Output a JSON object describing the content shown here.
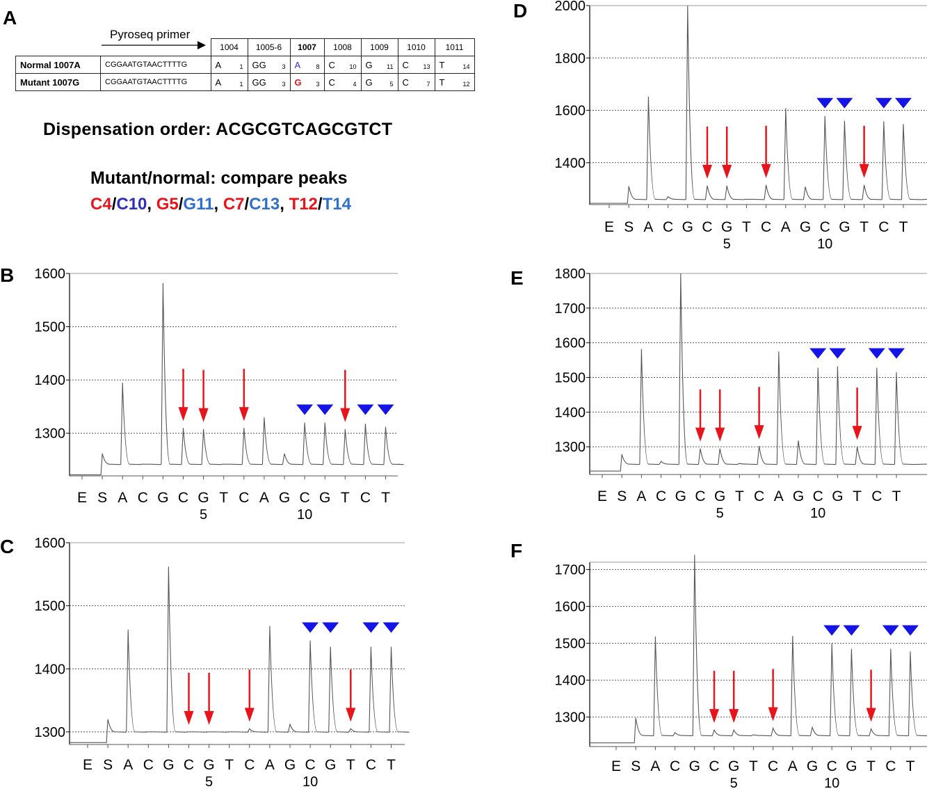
{
  "panelA": {
    "letter": "A",
    "primer_label": "Pyroseq primer",
    "positions": [
      "1004",
      "1005-6",
      "1007",
      "1008",
      "1009",
      "1010",
      "1011"
    ],
    "rows": [
      {
        "label": "Normal 1007A",
        "primer": "CGGAATGTAACTTTTG",
        "cells": [
          {
            "base": "A",
            "n": "1"
          },
          {
            "base": "GG",
            "n": "3"
          },
          {
            "base": "A",
            "n": "8"
          },
          {
            "base": "C",
            "n": "10"
          },
          {
            "base": "G",
            "n": "11"
          },
          {
            "base": "C",
            "n": "13"
          },
          {
            "base": "T",
            "n": "14"
          }
        ]
      },
      {
        "label": "Mutant 1007G",
        "primer": "CGGAATGTAACTTTTG",
        "cells": [
          {
            "base": "A",
            "n": "1"
          },
          {
            "base": "GG",
            "n": "3"
          },
          {
            "base": "G",
            "n": "3"
          },
          {
            "base": "C",
            "n": "4"
          },
          {
            "base": "G",
            "n": "5"
          },
          {
            "base": "C",
            "n": "7"
          },
          {
            "base": "T",
            "n": "12"
          }
        ]
      }
    ],
    "dispensation": "Dispensation order: ACGCGTCAGCGTCT",
    "compare_title": "Mutant/normal: compare peaks",
    "compare_pairs": [
      {
        "mut": "C4",
        "norm": "C10"
      },
      {
        "mut": "G5",
        "norm": "G11"
      },
      {
        "mut": "C7",
        "norm": "C13"
      },
      {
        "mut": "T12",
        "norm": "T14"
      }
    ],
    "slash": "/",
    "comma": ",",
    "colors": {
      "mutant": "#e8141b",
      "normal_dark": "#2f2fbd",
      "normal_light": "#2f6fd0"
    }
  },
  "chart_data": [
    {
      "panel": "B",
      "type": "line",
      "dispensation": [
        "E",
        "S",
        "A",
        "C",
        "G",
        "C",
        "G",
        "T",
        "C",
        "A",
        "G",
        "C",
        "G",
        "T",
        "C",
        "T"
      ],
      "index_labels": [
        {
          "at": 6,
          "text": "5"
        },
        {
          "at": 11,
          "text": "10"
        }
      ],
      "y_ticks": [
        1300,
        1400,
        1500,
        1600
      ],
      "ylim": [
        1220,
        1600
      ],
      "baseline_start": 1222,
      "baseline": 1242,
      "peaks": [
        1262,
        1395,
        1242,
        1582,
        1310,
        1308,
        1242,
        1310,
        1330,
        1262,
        1320,
        1320,
        1308,
        1318,
        1312
      ],
      "arrows_at": [
        5,
        6,
        8,
        13
      ],
      "triangles_at": [
        11,
        12,
        14,
        15
      ],
      "grid": true
    },
    {
      "panel": "C",
      "type": "line",
      "dispensation": [
        "E",
        "S",
        "A",
        "C",
        "G",
        "C",
        "G",
        "T",
        "C",
        "A",
        "G",
        "C",
        "G",
        "T",
        "C",
        "T"
      ],
      "index_labels": [
        {
          "at": 6,
          "text": "5"
        },
        {
          "at": 11,
          "text": "10"
        }
      ],
      "y_ticks": [
        1300,
        1400,
        1500,
        1600
      ],
      "ylim": [
        1280,
        1600
      ],
      "baseline_start": 1283,
      "baseline": 1300,
      "peaks": [
        1320,
        1462,
        1300,
        1562,
        1300,
        1300,
        1300,
        1305,
        1468,
        1312,
        1445,
        1435,
        1305,
        1435,
        1435
      ],
      "arrows_at": [
        5,
        6,
        8,
        13
      ],
      "triangles_at": [
        11,
        12,
        14,
        15
      ],
      "grid": true
    },
    {
      "panel": "D",
      "type": "line",
      "dispensation": [
        "E",
        "S",
        "A",
        "C",
        "G",
        "C",
        "G",
        "T",
        "C",
        "A",
        "G",
        "C",
        "G",
        "T",
        "C",
        "T"
      ],
      "index_labels": [
        {
          "at": 6,
          "text": "5"
        },
        {
          "at": 11,
          "text": "10"
        }
      ],
      "y_ticks": [
        1400,
        1600,
        1800,
        2000
      ],
      "ylim": [
        1240,
        2000
      ],
      "baseline_start": 1245,
      "baseline": 1260,
      "peaks": [
        1310,
        1652,
        1270,
        2000,
        1312,
        1312,
        1260,
        1315,
        1608,
        1308,
        1578,
        1560,
        1315,
        1558,
        1548
      ],
      "arrows_at": [
        5,
        6,
        8,
        13
      ],
      "triangles_at": [
        11,
        12,
        14,
        15
      ],
      "grid": true
    },
    {
      "panel": "E",
      "type": "line",
      "dispensation": [
        "E",
        "S",
        "A",
        "C",
        "G",
        "C",
        "G",
        "T",
        "C",
        "A",
        "G",
        "C",
        "G",
        "T",
        "C",
        "T"
      ],
      "index_labels": [
        {
          "at": 6,
          "text": "5"
        },
        {
          "at": 11,
          "text": "10"
        }
      ],
      "y_ticks": [
        1300,
        1400,
        1500,
        1600,
        1700,
        1800
      ],
      "ylim": [
        1220,
        1800
      ],
      "baseline_start": 1230,
      "baseline": 1250,
      "peaks": [
        1278,
        1582,
        1258,
        1800,
        1295,
        1295,
        1252,
        1302,
        1575,
        1318,
        1528,
        1532,
        1300,
        1528,
        1515
      ],
      "arrows_at": [
        5,
        6,
        8,
        13
      ],
      "triangles_at": [
        11,
        12,
        14,
        15
      ],
      "grid": true
    },
    {
      "panel": "F",
      "type": "line",
      "dispensation": [
        "E",
        "S",
        "A",
        "C",
        "G",
        "C",
        "G",
        "T",
        "C",
        "A",
        "G",
        "C",
        "G",
        "T",
        "C",
        "T"
      ],
      "index_labels": [
        {
          "at": 6,
          "text": "5"
        },
        {
          "at": 11,
          "text": "10"
        }
      ],
      "y_ticks": [
        1300,
        1400,
        1500,
        1600,
        1700
      ],
      "ylim": [
        1220,
        1720
      ],
      "baseline_start": 1230,
      "baseline": 1250,
      "peaks": [
        1298,
        1518,
        1258,
        1740,
        1265,
        1265,
        1252,
        1270,
        1520,
        1272,
        1500,
        1485,
        1268,
        1485,
        1478
      ],
      "arrows_at": [
        5,
        6,
        8,
        13
      ],
      "triangles_at": [
        11,
        12,
        14,
        15
      ],
      "grid": true
    }
  ]
}
